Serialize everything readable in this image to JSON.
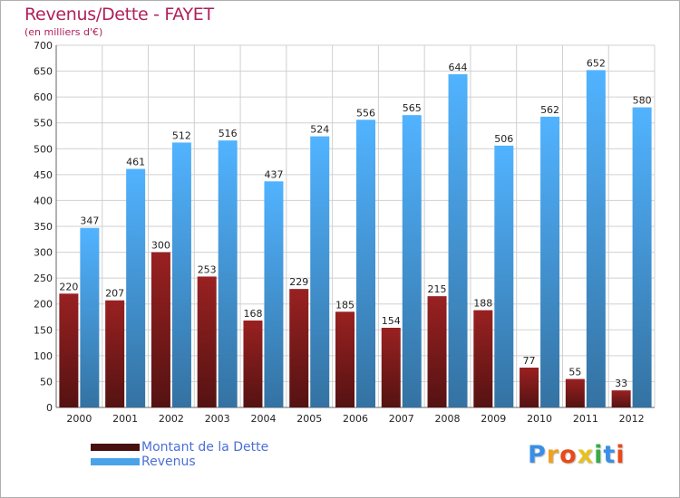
{
  "chart_data": {
    "type": "bar",
    "title": "Revenus/Dette - FAYET",
    "subtitle": "(en milliers d'€)",
    "categories": [
      "2000",
      "2001",
      "2002",
      "2003",
      "2004",
      "2005",
      "2006",
      "2007",
      "2008",
      "2009",
      "2010",
      "2011",
      "2012"
    ],
    "series": [
      {
        "name": "Montant de la Dette",
        "color": "#7a1a1a",
        "values": [
          220,
          207,
          300,
          253,
          168,
          229,
          185,
          154,
          215,
          188,
          77,
          55,
          33
        ]
      },
      {
        "name": "Revenus",
        "color": "#4aa3e8",
        "values": [
          347,
          461,
          512,
          516,
          437,
          524,
          556,
          565,
          644,
          506,
          562,
          652,
          580
        ]
      }
    ],
    "ylim": [
      0,
      700
    ],
    "yticks": [
      0,
      50,
      100,
      150,
      200,
      250,
      300,
      350,
      400,
      450,
      500,
      550,
      600,
      650,
      700
    ],
    "grid": true,
    "legend": "bottom-left"
  },
  "logo": {
    "letters": [
      "P",
      "r",
      "o",
      "x",
      "i",
      "t",
      "i"
    ],
    "colors": [
      "#3a8ee6",
      "#f0a020",
      "#e84a1a",
      "#e8c020",
      "#3aaa4a",
      "#3a8ee6",
      "#e84a1a"
    ]
  }
}
